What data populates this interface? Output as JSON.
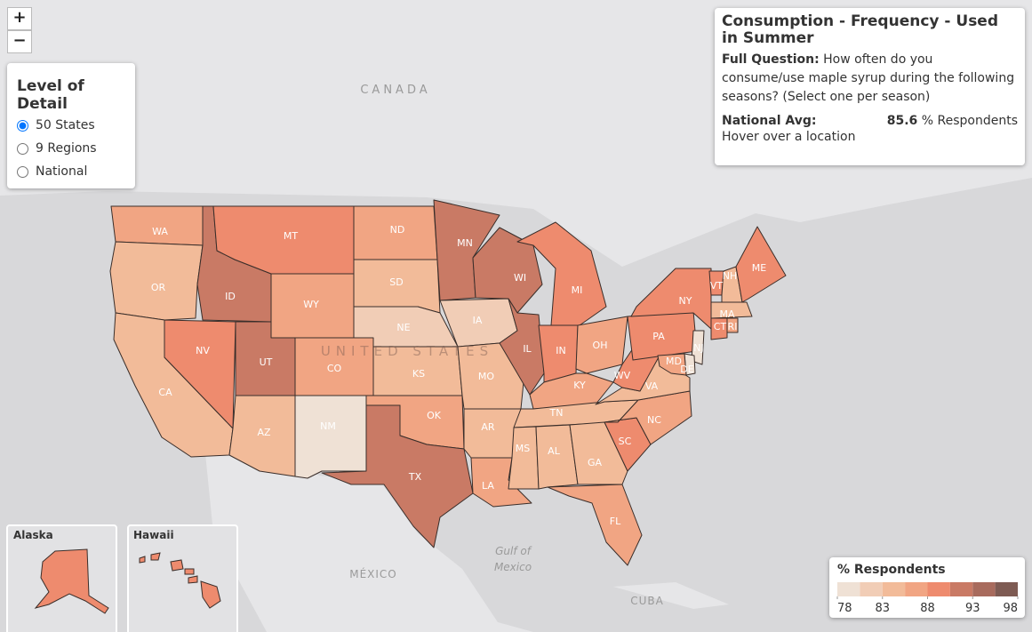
{
  "zoom": [
    "+",
    "−"
  ],
  "detail": {
    "title": "Level of Detail",
    "options": [
      "50 States",
      "9 Regions",
      "National"
    ],
    "selected": 0
  },
  "info": {
    "title": "Consumption - Frequency - Used in Summer",
    "question_label": "Full Question:",
    "question": "How often do you consume/use maple syrup during the following seasons? (Select one per season)",
    "avg_label": "National Avg:",
    "avg_value": 85.6,
    "avg_unit": "% Respondents",
    "hover": "Hover over a location"
  },
  "legend": {
    "title": "% Respondents",
    "range": [
      78,
      98
    ],
    "colors": [
      "#efe1d5",
      "#f1cdb6",
      "#f2bb99",
      "#f1a583",
      "#ee8b6e",
      "#c97a65",
      "#a86b5d",
      "#7e5b53"
    ],
    "ticks": [
      78,
      83,
      88,
      93,
      98
    ]
  },
  "states": [
    {
      "id": "WA",
      "value": 86
    },
    {
      "id": "OR",
      "value": 84
    },
    {
      "id": "CA",
      "value": 84
    },
    {
      "id": "NV",
      "value": 89
    },
    {
      "id": "ID",
      "value": 91
    },
    {
      "id": "MT",
      "value": 89
    },
    {
      "id": "WY",
      "value": 87
    },
    {
      "id": "UT",
      "value": 91
    },
    {
      "id": "CO",
      "value": 87
    },
    {
      "id": "AZ",
      "value": 84
    },
    {
      "id": "NM",
      "value": 79
    },
    {
      "id": "ND",
      "value": 86
    },
    {
      "id": "SD",
      "value": 84
    },
    {
      "id": "NE",
      "value": 81
    },
    {
      "id": "KS",
      "value": 84
    },
    {
      "id": "OK",
      "value": 87
    },
    {
      "id": "TX",
      "value": 91
    },
    {
      "id": "MN",
      "value": 91
    },
    {
      "id": "IA",
      "value": 81
    },
    {
      "id": "MO",
      "value": 84
    },
    {
      "id": "AR",
      "value": 84
    },
    {
      "id": "LA",
      "value": 87
    },
    {
      "id": "WI",
      "value": 91
    },
    {
      "id": "IL",
      "value": 91
    },
    {
      "id": "MI",
      "value": 89
    },
    {
      "id": "IN",
      "value": 89
    },
    {
      "id": "OH",
      "value": 86
    },
    {
      "id": "KY",
      "value": 86
    },
    {
      "id": "TN",
      "value": 84
    },
    {
      "id": "MS",
      "value": 84
    },
    {
      "id": "AL",
      "value": 84
    },
    {
      "id": "GA",
      "value": 84
    },
    {
      "id": "FL",
      "value": 86
    },
    {
      "id": "SC",
      "value": 89
    },
    {
      "id": "NC",
      "value": 86
    },
    {
      "id": "VA",
      "value": 85
    },
    {
      "id": "WV",
      "value": 89
    },
    {
      "id": "PA",
      "value": 89
    },
    {
      "id": "NY",
      "value": 89
    },
    {
      "id": "VT",
      "value": 89
    },
    {
      "id": "NH",
      "value": 84
    },
    {
      "id": "ME",
      "value": 89
    },
    {
      "id": "MA",
      "value": 84
    },
    {
      "id": "CT",
      "value": 89
    },
    {
      "id": "RI",
      "value": 86
    },
    {
      "id": "NJ",
      "value": 79
    },
    {
      "id": "DE",
      "value": 79
    },
    {
      "id": "MD",
      "value": 86
    }
  ],
  "insets": [
    {
      "name": "Alaska",
      "value": 89
    },
    {
      "name": "Hawaii",
      "value": 89
    }
  ],
  "map_labels": [
    "CANADA",
    "UNITED STATES",
    "MÉXICO",
    "Gulf of",
    "Mexico",
    "CUBA"
  ]
}
